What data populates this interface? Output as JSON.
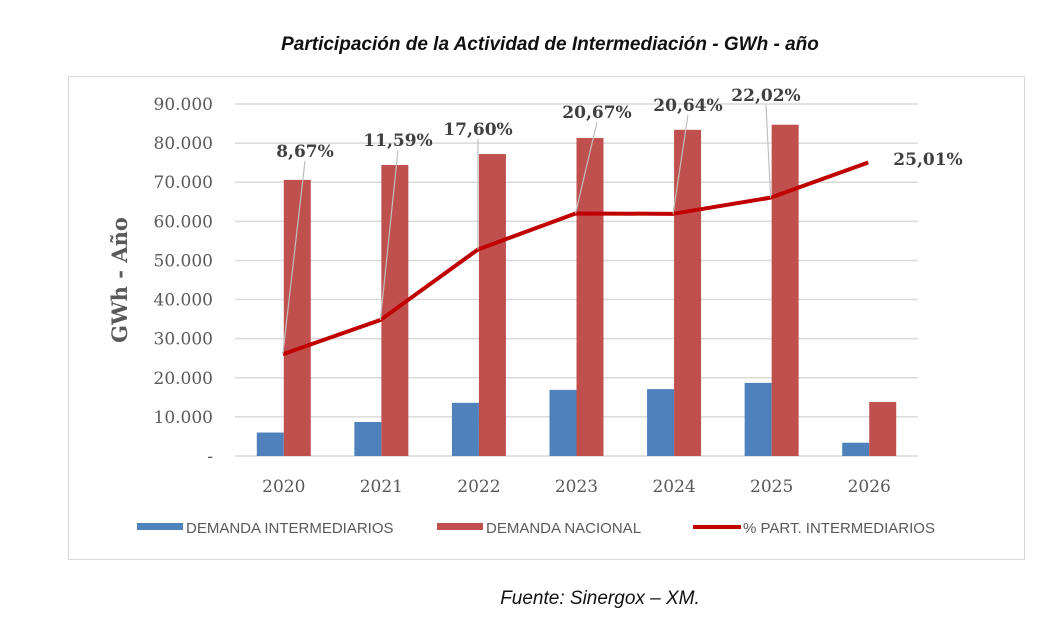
{
  "chart_data": {
    "type": "bar",
    "title": "Participación de la Actividad de Intermediación - GWh - año",
    "ylabel": "GWh - Año",
    "xlabel": "",
    "ylim": [
      0,
      90000
    ],
    "y_ticks": [
      "-",
      "10.000",
      "20.000",
      "30.000",
      "40.000",
      "50.000",
      "60.000",
      "70.000",
      "80.000",
      "90.000"
    ],
    "secondary_ylim": [
      0,
      30
    ],
    "grid": true,
    "legend_position": "bottom",
    "categories": [
      "2020",
      "2021",
      "2022",
      "2023",
      "2024",
      "2025",
      "2026"
    ],
    "series": [
      {
        "name": "DEMANDA INTERMEDIARIOS",
        "kind": "bar",
        "color": "#4f81bd",
        "values": [
          6000,
          8700,
          13600,
          16900,
          17100,
          18700,
          3400
        ]
      },
      {
        "name": "DEMANDA NACIONAL",
        "kind": "bar",
        "color": "#c0504d",
        "values": [
          70600,
          74400,
          77200,
          81300,
          83400,
          84700,
          13800
        ]
      },
      {
        "name": "% PART. INTERMEDIARIOS",
        "kind": "line",
        "axis": "secondary",
        "color": "#c00000",
        "values": [
          8.67,
          11.59,
          17.6,
          20.67,
          20.64,
          22.02,
          25.01
        ],
        "labels": [
          "8,67%",
          "11,59%",
          "17,60%",
          "20,67%",
          "20,64%",
          "22,02%",
          "25,01%"
        ]
      }
    ]
  },
  "source": "Fuente: Sinergox – XM."
}
